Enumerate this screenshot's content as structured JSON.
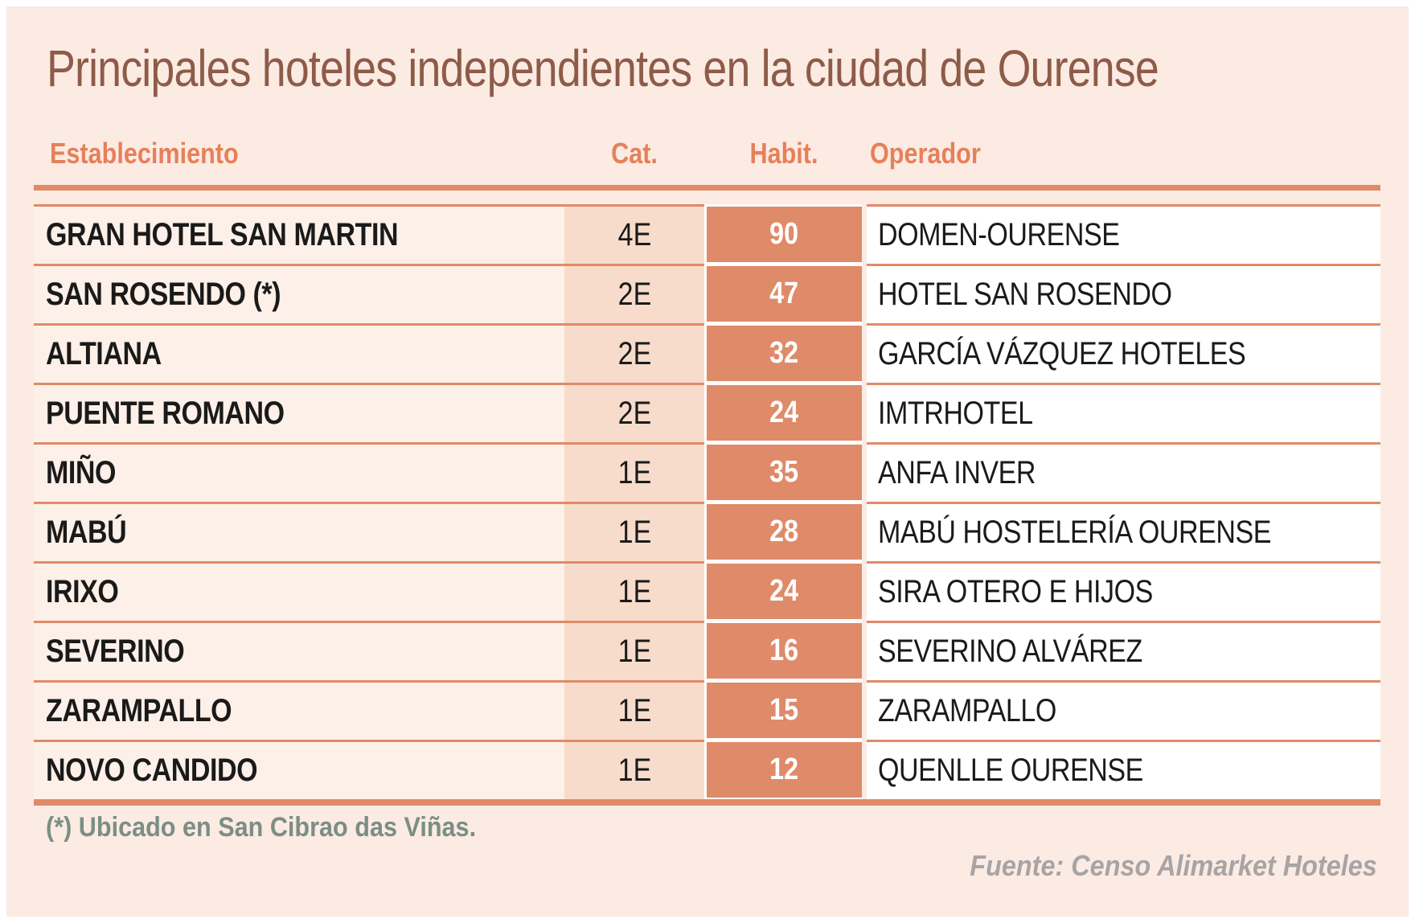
{
  "title": "Principales hoteles independientes en la ciudad de Ourense",
  "footnote": "(*) Ubicado en San Cibrao das Viñas.",
  "source": "Fuente: Censo Alimarket Hoteles",
  "colors": {
    "background": "#fbebe2",
    "accent_salmon": "#df8a69",
    "cat_band": "#f7dccb",
    "establishment_band": "#fdf0e8",
    "header_text": "#e6805a",
    "title_text": "#8e5b49",
    "footnote_text": "#7b8e85",
    "source_text": "#a8a4a5",
    "body_text": "#1a1a1a",
    "habit_value_text": "#ffffff"
  },
  "chart_data": {
    "type": "table",
    "title": "Principales hoteles independientes en la ciudad de Ourense",
    "columns": [
      "Establecimiento",
      "Cat.",
      "Habit.",
      "Operador"
    ],
    "rows": [
      [
        "GRAN HOTEL SAN MARTIN",
        "4E",
        90,
        "DOMEN-OURENSE"
      ],
      [
        "SAN ROSENDO (*)",
        "2E",
        47,
        "HOTEL SAN ROSENDO"
      ],
      [
        "ALTIANA",
        "2E",
        32,
        "GARCÍA VÁZQUEZ HOTELES"
      ],
      [
        "PUENTE ROMANO",
        "2E",
        24,
        "IMTRHOTEL"
      ],
      [
        "MIÑO",
        "1E",
        35,
        "ANFA INVER"
      ],
      [
        "MABÚ",
        "1E",
        28,
        "MABÚ HOSTELERÍA OURENSE"
      ],
      [
        "IRIXO",
        "1E",
        24,
        "SIRA OTERO E HIJOS"
      ],
      [
        "SEVERINO",
        "1E",
        16,
        "SEVERINO ALVÁREZ"
      ],
      [
        "ZARAMPALLO",
        "1E",
        15,
        "ZARAMPALLO"
      ],
      [
        "NOVO CANDIDO",
        "1E",
        12,
        "QUENLLE OURENSE"
      ]
    ],
    "footnote": "(*) Ubicado en San Cibrao das Viñas.",
    "source": "Fuente: Censo Alimarket Hoteles"
  }
}
